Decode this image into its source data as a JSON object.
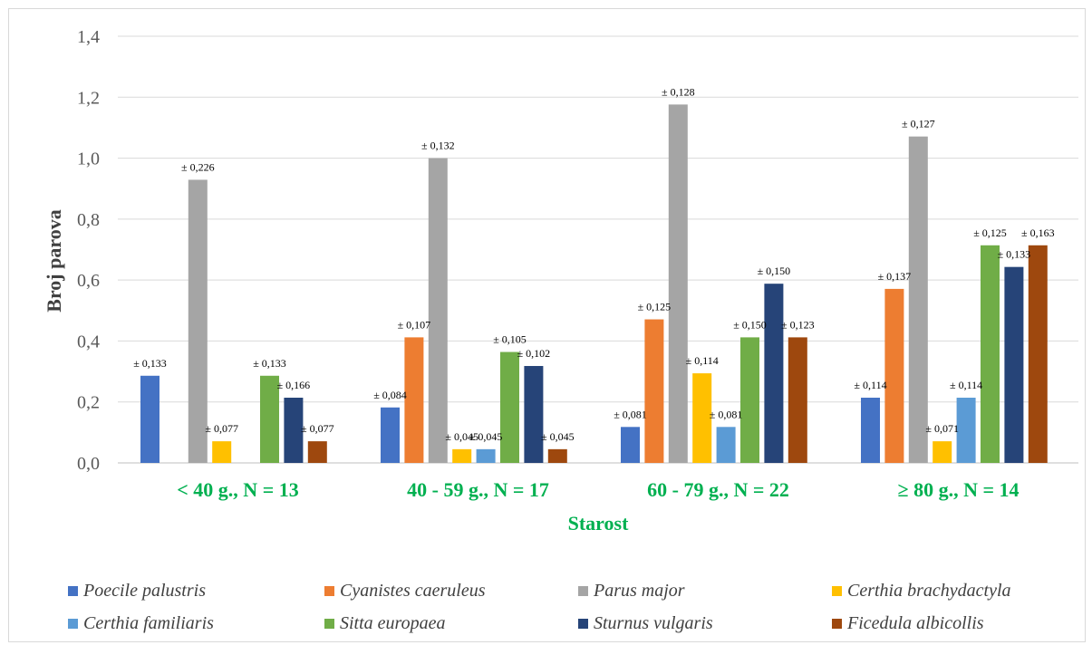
{
  "chart_data": {
    "type": "bar",
    "xlabel": "Starost",
    "ylabel": "Broj parova",
    "ylim": [
      0,
      1.4
    ],
    "yticks": [
      "0,0",
      "0,2",
      "0,4",
      "0,6",
      "0,8",
      "1,0",
      "1,2",
      "1,4"
    ],
    "grid": true,
    "legend_position": "bottom",
    "category_color": "#00b050",
    "categories": [
      "< 40 g., N = 13",
      "40 - 59 g., N = 17",
      "60 - 79 g., N = 22",
      "≥ 80 g., N = 14"
    ],
    "series": [
      {
        "name": "Poecile palustris",
        "color": "#4472c4",
        "values": [
          0.286,
          0.182,
          0.118,
          0.214
        ],
        "errors": [
          "± 0,133",
          "± 0,084",
          "± 0,081",
          "± 0,114"
        ]
      },
      {
        "name": "Cyanistes caeruleus",
        "color": "#ed7d31",
        "values": [
          0,
          0.412,
          0.471,
          0.571
        ],
        "errors": [
          "",
          "± 0,107",
          "± 0,125",
          "± 0,137"
        ]
      },
      {
        "name": "Parus major",
        "color": "#a5a5a5",
        "values": [
          0.929,
          1.0,
          1.176,
          1.071
        ],
        "errors": [
          "± 0,226",
          "± 0,132",
          "± 0,128",
          "± 0,127"
        ]
      },
      {
        "name": "Certhia brachydactyla",
        "color": "#ffc000",
        "values": [
          0.071,
          0.045,
          0.294,
          0.071
        ],
        "errors": [
          "± 0,077",
          "± 0,045",
          "± 0,114",
          "± 0,071"
        ]
      },
      {
        "name": "Certhia familiaris",
        "color": "#5b9bd5",
        "values": [
          0,
          0.045,
          0.118,
          0.214
        ],
        "errors": [
          "",
          "± 0,045",
          "± 0,081",
          "± 0,114"
        ]
      },
      {
        "name": "Sitta europaea",
        "color": "#70ad47",
        "values": [
          0.286,
          0.364,
          0.412,
          0.714
        ],
        "errors": [
          "± 0,133",
          "± 0,105",
          "± 0,150",
          "± 0,125"
        ]
      },
      {
        "name": "Sturnus vulgaris",
        "color": "#264478",
        "values": [
          0.214,
          0.318,
          0.588,
          0.643
        ],
        "errors": [
          "± 0,166",
          "± 0,102",
          "± 0,150",
          "± 0,133"
        ]
      },
      {
        "name": "Ficedula albicollis",
        "color": "#9e480e",
        "values": [
          0.071,
          0.045,
          0.412,
          0.714
        ],
        "errors": [
          "± 0,077",
          "± 0,045",
          "± 0,123",
          "± 0,163"
        ]
      }
    ]
  }
}
